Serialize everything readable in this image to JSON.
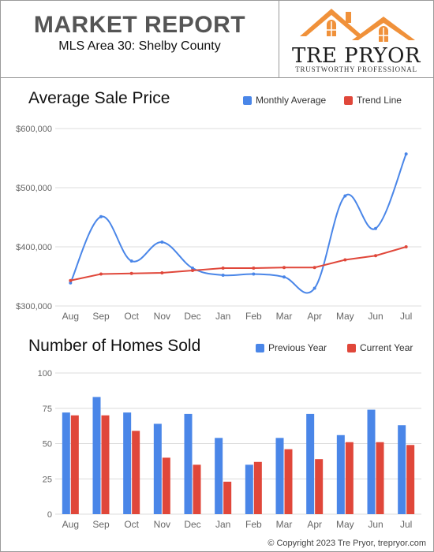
{
  "header": {
    "title": "MARKET REPORT",
    "subtitle": "MLS Area 30: Shelby County"
  },
  "brand": {
    "name": "TRE PRYOR",
    "tagline": "TRUSTWORTHY PROFESSIONAL",
    "logo_icon": "house-roof-icon",
    "logo_color": "#f0913a"
  },
  "colors": {
    "blue": "#4a86e8",
    "red": "#e0473a",
    "grid": "#dcdcdc",
    "axis_text": "#666666"
  },
  "chart_data": [
    {
      "type": "line",
      "title": "Average Sale Price",
      "categories": [
        "Aug",
        "Sep",
        "Oct",
        "Nov",
        "Dec",
        "Jan",
        "Feb",
        "Mar",
        "Apr",
        "May",
        "Jun",
        "Jul"
      ],
      "series": [
        {
          "name": "Monthly Average",
          "values": [
            339000,
            451000,
            376000,
            408000,
            364000,
            352000,
            354000,
            349000,
            330000,
            486000,
            431000,
            557000
          ],
          "color": "#4a86e8",
          "smooth": true
        },
        {
          "name": "Trend Line",
          "values": [
            343000,
            354000,
            355000,
            356000,
            360000,
            364000,
            364000,
            365000,
            365000,
            378000,
            385000,
            400000
          ],
          "color": "#e0473a",
          "smooth": false
        }
      ],
      "yticks": [
        300000,
        400000,
        500000,
        600000
      ],
      "ytick_labels": [
        "$300,000",
        "$400,000",
        "$500,000",
        "$600,000"
      ],
      "ylim": [
        300000,
        600000
      ],
      "grid": true,
      "legend": "top-right"
    },
    {
      "type": "bar",
      "title": "Number of Homes Sold",
      "categories": [
        "Aug",
        "Sep",
        "Oct",
        "Nov",
        "Dec",
        "Jan",
        "Feb",
        "Mar",
        "Apr",
        "May",
        "Jun",
        "Jul"
      ],
      "series": [
        {
          "name": "Previous Year",
          "values": [
            72,
            83,
            72,
            64,
            71,
            54,
            35,
            54,
            71,
            56,
            74,
            63
          ],
          "color": "#4a86e8"
        },
        {
          "name": "Current Year",
          "values": [
            70,
            70,
            59,
            40,
            35,
            23,
            37,
            46,
            39,
            51,
            51,
            49
          ],
          "color": "#e0473a"
        }
      ],
      "yticks": [
        0,
        25,
        50,
        75,
        100
      ],
      "ytick_labels": [
        "0",
        "25",
        "50",
        "75",
        "100"
      ],
      "ylim": [
        0,
        100
      ],
      "grid": true,
      "legend": "top-right"
    }
  ],
  "footer": {
    "copyright": "© Copyright 2023 Tre Pryor, trepryor.com"
  }
}
